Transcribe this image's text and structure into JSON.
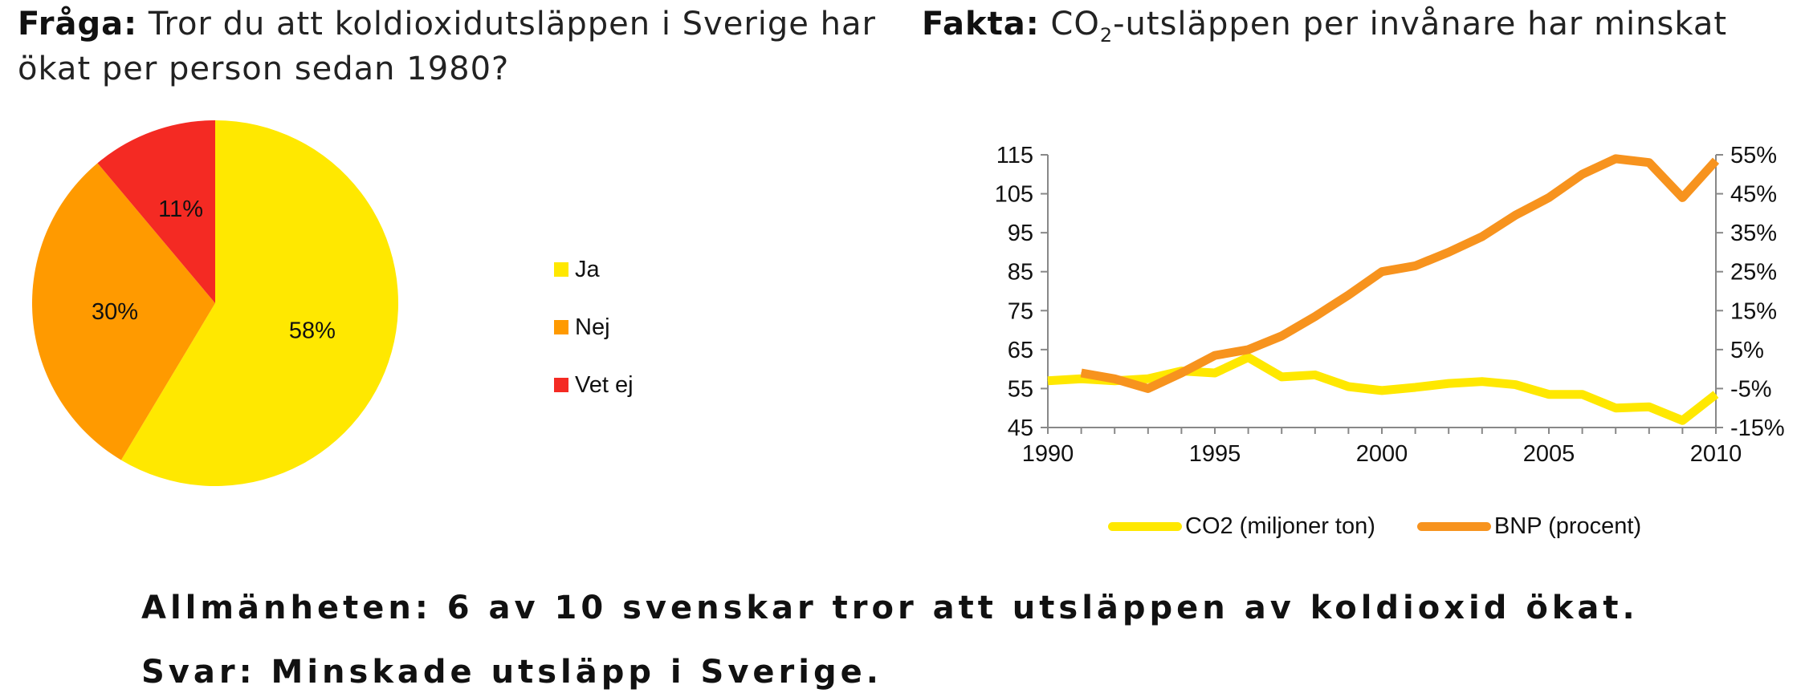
{
  "question": {
    "prefix": "Fråga:",
    "text": "Tror du att koldioxidutsläppen i Sverige har ökat per person sedan 1980?"
  },
  "fact": {
    "prefix": "Fakta:",
    "text_before": "CO",
    "subscript": "2",
    "text_after": "-utsläppen per invånare har minskat"
  },
  "colors": {
    "ja": "#ffe800",
    "nej": "#ff9a00",
    "vet_ej": "#f42a23",
    "co2_line": "#ffe800",
    "bnp_line": "#f7931e",
    "axis": "#888888"
  },
  "chart_data": [
    {
      "type": "pie",
      "categories": [
        "Ja",
        "Nej",
        "Vet ej"
      ],
      "values": [
        58,
        30,
        11
      ],
      "labels": [
        "58%",
        "30%",
        "11%"
      ],
      "legend": "right"
    },
    {
      "type": "line",
      "x": [
        1990,
        1991,
        1992,
        1993,
        1994,
        1995,
        1996,
        1997,
        1998,
        1999,
        2000,
        2001,
        2002,
        2003,
        2004,
        2005,
        2006,
        2007,
        2008,
        2009,
        2010
      ],
      "xticks": [
        "1990",
        "1995",
        "2000",
        "2005",
        "2010"
      ],
      "xlim": [
        1990,
        2010
      ],
      "y_left": {
        "lim": [
          45,
          115
        ],
        "ticks": [
          "115",
          "105",
          "95",
          "85",
          "75",
          "65",
          "55",
          "45"
        ]
      },
      "y_right": {
        "lim": [
          -15,
          55
        ],
        "ticks": [
          "55%",
          "45%",
          "35%",
          "25%",
          "15%",
          "5%",
          "-5%",
          "-15%"
        ]
      },
      "series": [
        {
          "name": "CO2 (miljoner ton)",
          "axis": "left",
          "values": [
            57,
            57.5,
            57,
            57.5,
            59.5,
            59,
            63,
            58,
            58.5,
            55.5,
            54.5,
            55.3,
            56.3,
            56.8,
            56,
            53.5,
            53.5,
            50,
            50.3,
            46.8,
            53.5
          ]
        },
        {
          "name": "BNP (procent)",
          "axis": "right",
          "values": [
            null,
            -1,
            -2.5,
            -5,
            -1,
            3.5,
            5,
            8.5,
            13.5,
            19,
            25,
            26.5,
            30,
            34,
            39.5,
            44,
            50,
            54,
            53,
            44,
            53.5
          ]
        }
      ],
      "legend": "bottom"
    }
  ],
  "conclusion": {
    "line1": "Allmänheten: 6 av 10 svenskar tror att utsläppen av koldioxid ökat.",
    "line2": "Svar: Minskade utsläpp i Sverige."
  }
}
